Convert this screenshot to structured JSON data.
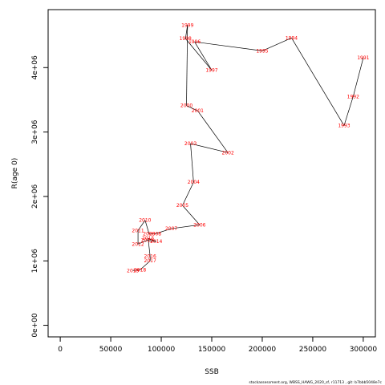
{
  "chart_data": {
    "type": "line",
    "title": "",
    "xlabel": "SSB",
    "ylabel": "R(age 0)",
    "xlim": [
      -12000,
      312000
    ],
    "ylim": [
      -180000,
      4900000
    ],
    "x_ticks": [
      0,
      50000,
      100000,
      150000,
      200000,
      250000,
      300000
    ],
    "x_tick_labels": [
      "0",
      "50000",
      "100000",
      "150000",
      "200000",
      "250000",
      "300000"
    ],
    "y_ticks": [
      0,
      1000000,
      2000000,
      3000000,
      4000000
    ],
    "y_tick_labels": [
      "0e+00",
      "1e+06",
      "2e+06",
      "3e+06",
      "4e+06"
    ],
    "grid": false,
    "series": [
      {
        "color": "#000000",
        "point_label_color": "#ff0000",
        "points": [
          {
            "label": "1991",
            "x": 300000,
            "y": 4150000
          },
          {
            "label": "1992",
            "x": 290000,
            "y": 3550000
          },
          {
            "label": "1993",
            "x": 281000,
            "y": 3100000
          },
          {
            "label": "1994",
            "x": 229000,
            "y": 4460000
          },
          {
            "label": "1995",
            "x": 200000,
            "y": 4260000
          },
          {
            "label": "1996",
            "x": 133000,
            "y": 4400000
          },
          {
            "label": "1997",
            "x": 150000,
            "y": 3960000
          },
          {
            "label": "1998",
            "x": 124000,
            "y": 4450000
          },
          {
            "label": "1999",
            "x": 126000,
            "y": 4660000
          },
          {
            "label": "2000",
            "x": 125000,
            "y": 3410000
          },
          {
            "label": "2001",
            "x": 136000,
            "y": 3330000
          },
          {
            "label": "2002",
            "x": 166000,
            "y": 2680000
          },
          {
            "label": "2003",
            "x": 129000,
            "y": 2820000
          },
          {
            "label": "2004",
            "x": 132000,
            "y": 2220000
          },
          {
            "label": "2005",
            "x": 121000,
            "y": 1860000
          },
          {
            "label": "2006",
            "x": 138000,
            "y": 1560000
          },
          {
            "label": "2007",
            "x": 110000,
            "y": 1500000
          },
          {
            "label": "2008",
            "x": 94000,
            "y": 1420000
          },
          {
            "label": "2009",
            "x": 88000,
            "y": 1420000
          },
          {
            "label": "2010",
            "x": 84000,
            "y": 1630000
          },
          {
            "label": "2011",
            "x": 77000,
            "y": 1470000
          },
          {
            "label": "2012",
            "x": 77000,
            "y": 1260000
          },
          {
            "label": "2013",
            "x": 86000,
            "y": 1320000
          },
          {
            "label": "2014",
            "x": 95000,
            "y": 1300000
          },
          {
            "label": "2015",
            "x": 87000,
            "y": 1350000
          },
          {
            "label": "2016",
            "x": 89000,
            "y": 1070000
          },
          {
            "label": "2017",
            "x": 89000,
            "y": 1000000
          },
          {
            "label": "2018",
            "x": 79000,
            "y": 860000
          },
          {
            "label": "2019",
            "x": 72000,
            "y": 850000
          }
        ]
      }
    ],
    "footer": "stockassessment.org, WBSS_HAWG_2020_sf, r11713 , git: b7bbb5048e7c"
  }
}
